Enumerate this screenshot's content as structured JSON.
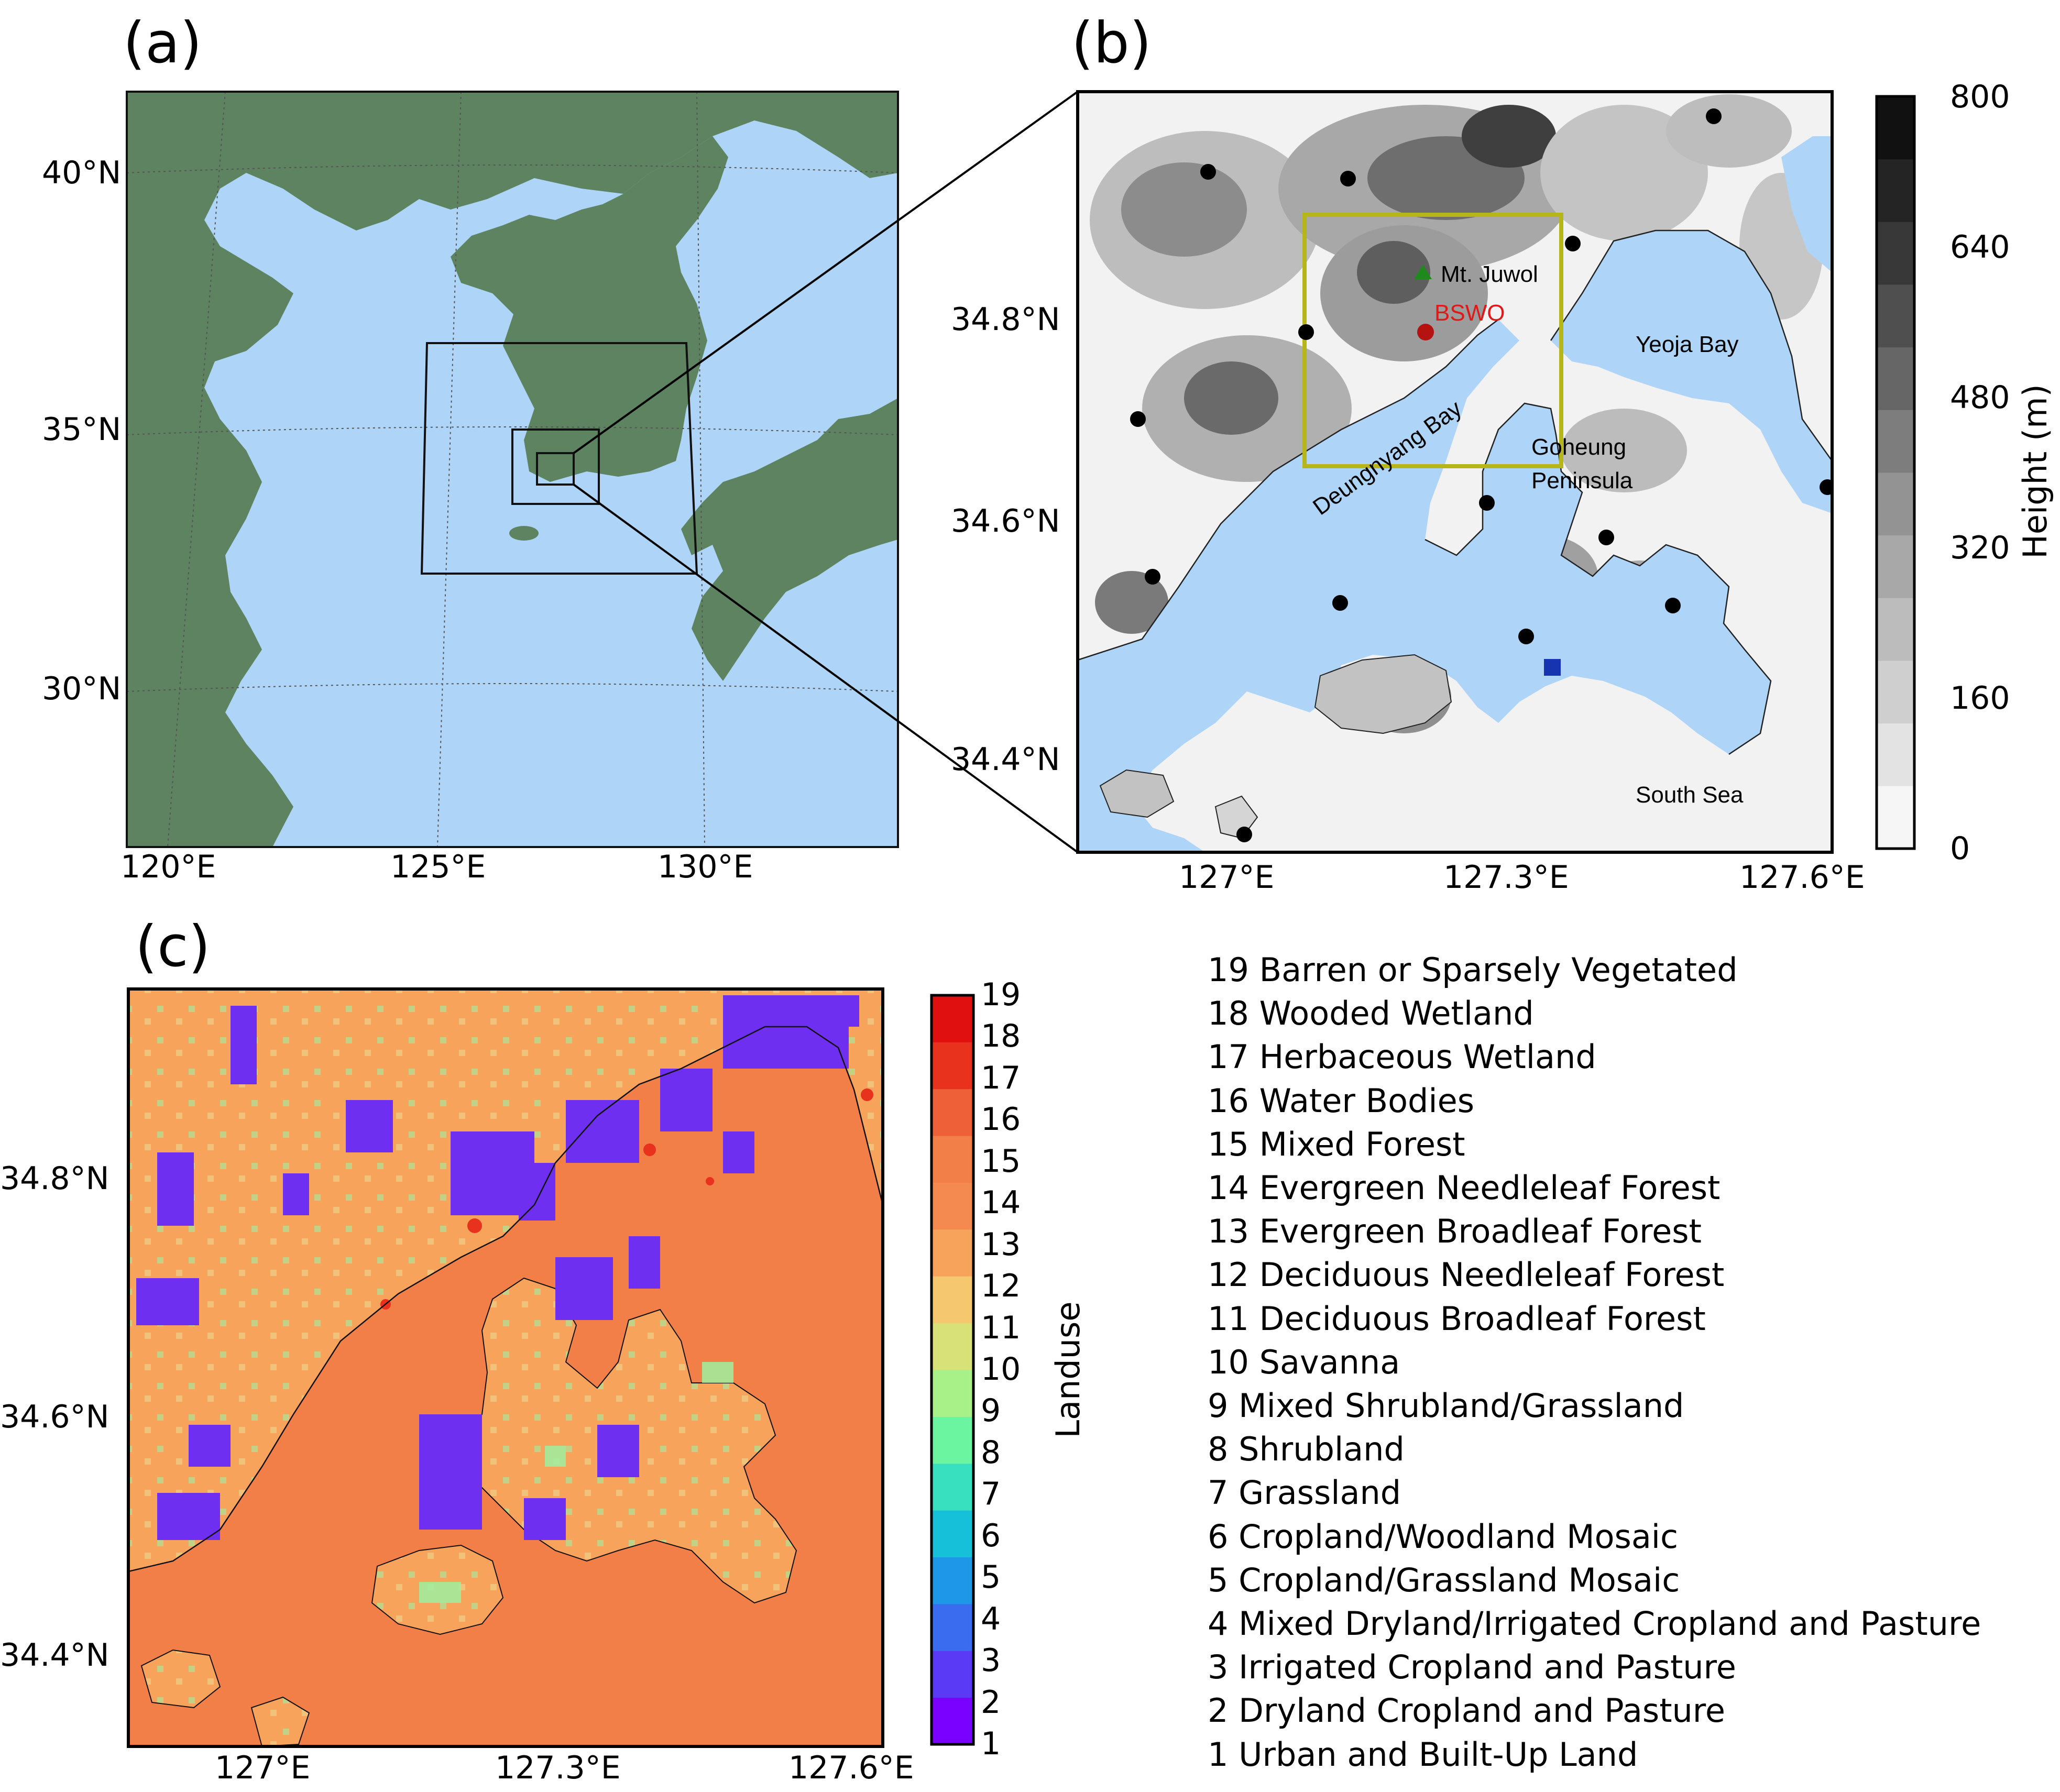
{
  "panels": {
    "a": {
      "label": "(a)",
      "lat_ticks": [
        "40°N",
        "35°N",
        "30°N"
      ],
      "lon_ticks": [
        "120°E",
        "125°E",
        "130°E"
      ]
    },
    "b": {
      "label": "(b)",
      "lat_ticks": [
        "34.8°N",
        "34.6°N",
        "34.4°N"
      ],
      "lon_ticks": [
        "127°E",
        "127.3°E",
        "127.6°E"
      ],
      "places": {
        "mt_juwol": "Mt. Juwol",
        "bswo": "BSWO",
        "yeoja_bay": "Yeoja Bay",
        "goheung_1": "Goheung",
        "goheung_2": "Peninsula",
        "deungnyang_bay": "Deungnyang Bay",
        "south_sea": "South Sea"
      },
      "colorbar": {
        "label": "Height (m)",
        "ticks": [
          "800",
          "640",
          "480",
          "320",
          "160",
          "0"
        ],
        "min": 0,
        "max": 800,
        "colors": [
          "#f6f6f6",
          "#e3e3e3",
          "#cfcfcf",
          "#bcbcbc",
          "#a8a8a8",
          "#939393",
          "#7d7d7d",
          "#666666",
          "#4f4f4f",
          "#383838",
          "#242424",
          "#111111"
        ]
      },
      "colors": {
        "water": "#aed4f7",
        "station": "#000000",
        "bswo": "#b51212",
        "mt_juwol": "#1e8a1e",
        "square_marker": "#1633b0",
        "box": "#b6b61a"
      }
    },
    "c": {
      "label": "(c)",
      "lat_ticks": [
        "34.8°N",
        "34.6°N",
        "34.4°N"
      ],
      "lon_ticks": [
        "127°E",
        "127.3°E",
        "127.6°E"
      ],
      "colorbar": {
        "label": "Landuse",
        "ticks": [
          "19",
          "18",
          "17",
          "16",
          "15",
          "14",
          "13",
          "12",
          "11",
          "10",
          "9",
          "8",
          "7",
          "6",
          "5",
          "4",
          "3",
          "2",
          "1"
        ],
        "min": 1,
        "max": 19
      },
      "legend": [
        "19 Barren or Sparsely Vegetated",
        "18 Wooded Wetland",
        "17 Herbaceous Wetland",
        "16 Water Bodies",
        "15 Mixed Forest",
        "14 Evergreen Needleleaf Forest",
        "13 Evergreen Broadleaf Forest",
        "12 Deciduous Needleleaf Forest",
        "11 Deciduous Broadleaf Forest",
        "10 Savanna",
        "9 Mixed Shrubland/Grassland",
        "8 Shrubland",
        "7 Grassland",
        "6 Cropland/Woodland Mosaic",
        "5 Cropland/Grassland Mosaic",
        "4 Mixed Dryland/Irrigated Cropland and Pasture",
        "3 Irrigated Cropland and Pasture",
        "2 Dryland Cropland and Pasture",
        "1 Urban and Built-Up Land"
      ],
      "colors": {
        "water_bodies": "#f27e48",
        "mixed_forest": "#f7a35c",
        "crop": "#6f2ff0"
      }
    }
  },
  "colors": {
    "land": "#5e8361",
    "ocean": "#aed4f7"
  }
}
